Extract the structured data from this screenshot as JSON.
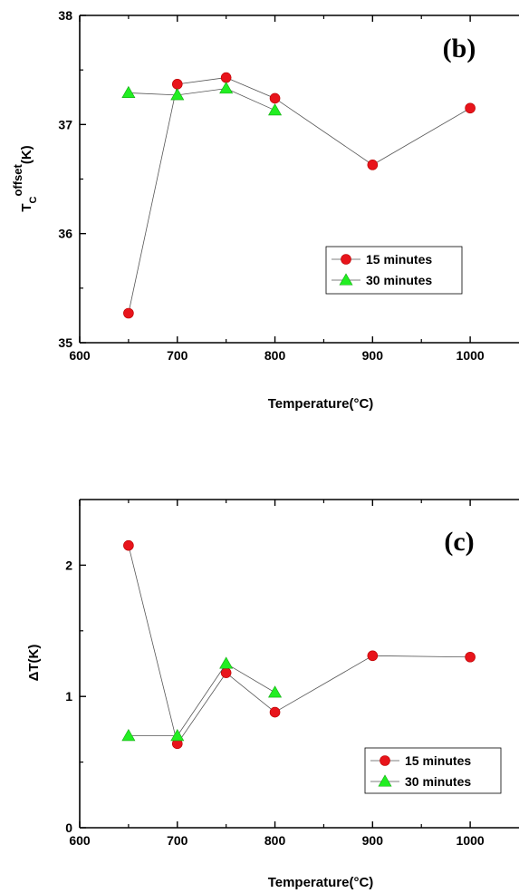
{
  "chart_data": [
    {
      "type": "line",
      "panel": "(b)",
      "x_title": "Temperature(°C)",
      "y_title_main": "T",
      "y_title_sub": "C",
      "y_title_sup": "offset",
      "y_title_unit": "(K)",
      "xlim": [
        600,
        1050
      ],
      "ylim": [
        35,
        38
      ],
      "xticks": [
        600,
        700,
        800,
        900,
        1000
      ],
      "yticks": [
        35,
        36,
        37,
        38
      ],
      "legend_position": "center-right",
      "series": [
        {
          "name": "15 minutes",
          "marker": "circle",
          "color": "#e8141b",
          "x": [
            650,
            700,
            750,
            800,
            900,
            1000
          ],
          "y": [
            35.27,
            37.37,
            37.43,
            37.24,
            36.63,
            37.15
          ]
        },
        {
          "name": "30 minutes",
          "marker": "triangle",
          "color": "#22ee22",
          "x": [
            650,
            700,
            750,
            800
          ],
          "y": [
            37.29,
            37.27,
            37.33,
            37.13
          ]
        }
      ]
    },
    {
      "type": "line",
      "panel": "(c)",
      "x_title": "Temperature(°C)",
      "y_title": "ΔT(K)",
      "xlim": [
        600,
        1050
      ],
      "ylim": [
        0,
        2.5
      ],
      "xticks": [
        600,
        700,
        800,
        900,
        1000
      ],
      "yticks": [
        0,
        1,
        2
      ],
      "legend_position": "bottom-right",
      "series": [
        {
          "name": "15 minutes",
          "marker": "circle",
          "color": "#e8141b",
          "x": [
            650,
            700,
            750,
            800,
            900,
            1000
          ],
          "y": [
            2.15,
            0.64,
            1.18,
            0.88,
            1.31,
            1.3
          ]
        },
        {
          "name": "30 minutes",
          "marker": "triangle",
          "color": "#22ee22",
          "x": [
            650,
            700,
            750,
            800
          ],
          "y": [
            0.7,
            0.7,
            1.25,
            1.03
          ]
        }
      ]
    }
  ]
}
